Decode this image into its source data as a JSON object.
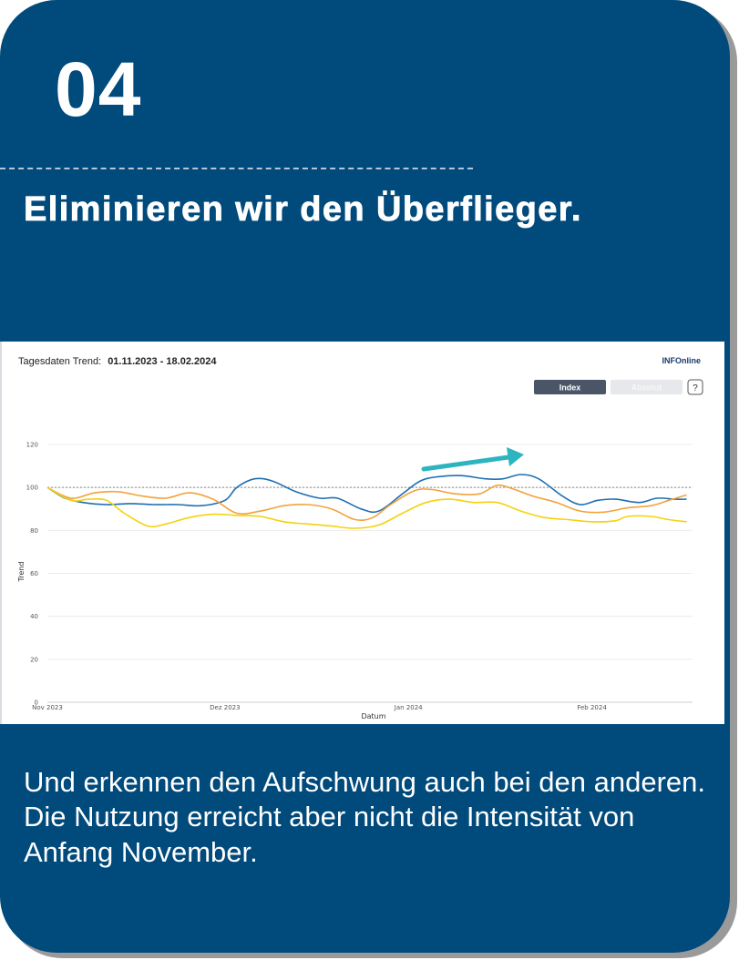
{
  "card": {
    "step_number": "04",
    "headline": "Eliminieren wir den Überflieger.",
    "caption": "Und erkennen den Aufschwung auch bei den anderen. Die Nutzung erreicht aber nicht die Intensität von Anfang November.",
    "background_color": "#004a7c"
  },
  "chart_header": {
    "label": "Tagesdaten Trend:",
    "date_range": "01.11.2023 - 18.02.2024",
    "logo_text": "INFOnline",
    "index_button": "Index",
    "absolut_button": "Absolut",
    "help_button": "?"
  },
  "chart_data": {
    "type": "line",
    "title": "",
    "xlabel": "Datum",
    "ylabel": "Trend",
    "ylim": [
      0,
      120
    ],
    "yticks": [
      0,
      20,
      40,
      60,
      80,
      100,
      120
    ],
    "xticks": [
      "Nov 2023",
      "Dez 2023",
      "Jan 2024",
      "Feb 2024"
    ],
    "xticks_days": [
      0,
      30,
      61,
      92
    ],
    "x_days_range": [
      0,
      109
    ],
    "reference_line": 100,
    "grid": true,
    "legend": "none",
    "annotation": "arrow",
    "series": [
      {
        "color": "#1f6fb2",
        "x": [
          0,
          3,
          6,
          10,
          14,
          18,
          22,
          26,
          30,
          32,
          35,
          38,
          42,
          46,
          49,
          53,
          56,
          60,
          63,
          66,
          70,
          74,
          77,
          80,
          83,
          87,
          90,
          93,
          96,
          100,
          103,
          106,
          108
        ],
        "values": [
          100,
          95,
          93,
          92,
          92.5,
          92,
          92,
          91.5,
          94,
          100,
          104,
          103,
          98,
          95,
          95,
          90,
          89,
          97,
          103,
          105,
          105.5,
          104,
          104,
          106,
          104,
          96,
          92,
          94,
          94.5,
          93,
          95,
          94.5,
          94.5
        ]
      },
      {
        "color": "#f2a33a",
        "x": [
          0,
          4,
          8,
          12,
          16,
          20,
          24,
          28,
          32,
          36,
          40,
          44,
          48,
          52,
          55,
          58,
          62,
          65,
          69,
          73,
          76,
          79,
          82,
          86,
          90,
          94,
          98,
          102,
          105,
          108
        ],
        "values": [
          100,
          95,
          97.5,
          98,
          96,
          95,
          97.5,
          94.5,
          88,
          89,
          91.5,
          92,
          90,
          85,
          86,
          92,
          98.5,
          99,
          97,
          97,
          101,
          99,
          96,
          93,
          89,
          88.5,
          90.5,
          91.5,
          94,
          96.5
        ]
      },
      {
        "color": "#f4d20f",
        "x": [
          0,
          4,
          7,
          10,
          13,
          17,
          20,
          24,
          28,
          32,
          36,
          40,
          44,
          48,
          52,
          56,
          60,
          64,
          68,
          72,
          76,
          80,
          84,
          88,
          92,
          96,
          98,
          102,
          105,
          108
        ],
        "values": [
          100,
          94,
          94.5,
          94,
          88,
          82,
          83,
          86,
          87.5,
          87,
          86.5,
          84,
          83,
          82,
          81,
          82.5,
          88,
          93,
          94.5,
          93,
          93,
          89,
          86,
          85,
          84,
          84.5,
          86.5,
          86.5,
          85,
          84
        ]
      }
    ]
  }
}
